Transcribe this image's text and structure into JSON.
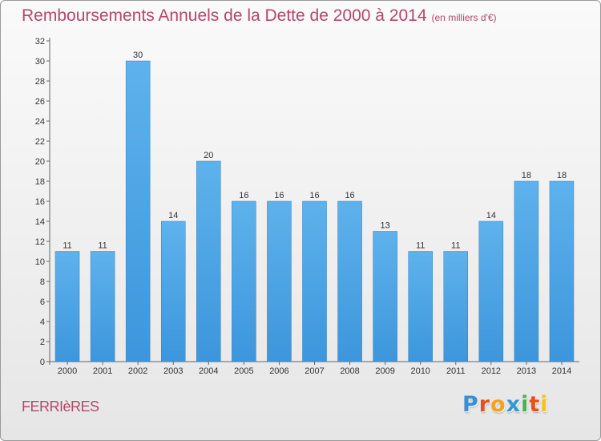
{
  "title": "Remboursements Annuels de la Dette de 2000 à 2014",
  "subtitle": "(en milliers d'€)",
  "commune": "FERRIèRES",
  "logo": {
    "letters": [
      "P",
      "r",
      "o",
      "x",
      "i",
      "t",
      "i"
    ],
    "colors": [
      "#3a8fd4",
      "#e94e1b",
      "#f3a21b",
      "#2e9ad6",
      "#4caf50",
      "#e94e1b",
      "#f3c31b"
    ]
  },
  "colors": {
    "bar": "#3d96dc",
    "title": "#b5476a"
  },
  "chart_data": {
    "type": "bar",
    "title": "Remboursements Annuels de la Dette de 2000 à 2014",
    "categories": [
      "2000",
      "2001",
      "2002",
      "2003",
      "2004",
      "2005",
      "2006",
      "2007",
      "2008",
      "2009",
      "2010",
      "2011",
      "2012",
      "2013",
      "2014"
    ],
    "values": [
      11,
      11,
      30,
      14,
      20,
      16,
      16,
      16,
      16,
      13,
      11,
      11,
      14,
      18,
      18
    ],
    "data_labels": [
      "11",
      "11",
      "30",
      "14",
      "20",
      "16",
      "16",
      "16",
      "16",
      "13",
      "11",
      "11",
      "14",
      "18",
      "18"
    ],
    "ylim": [
      0,
      32
    ],
    "yticks": [
      "0",
      "2",
      "4",
      "6",
      "8",
      "10",
      "12",
      "14",
      "16",
      "18",
      "20",
      "22",
      "24",
      "26",
      "28",
      "30",
      "32"
    ],
    "grid": false,
    "xlabel": "",
    "ylabel": ""
  }
}
